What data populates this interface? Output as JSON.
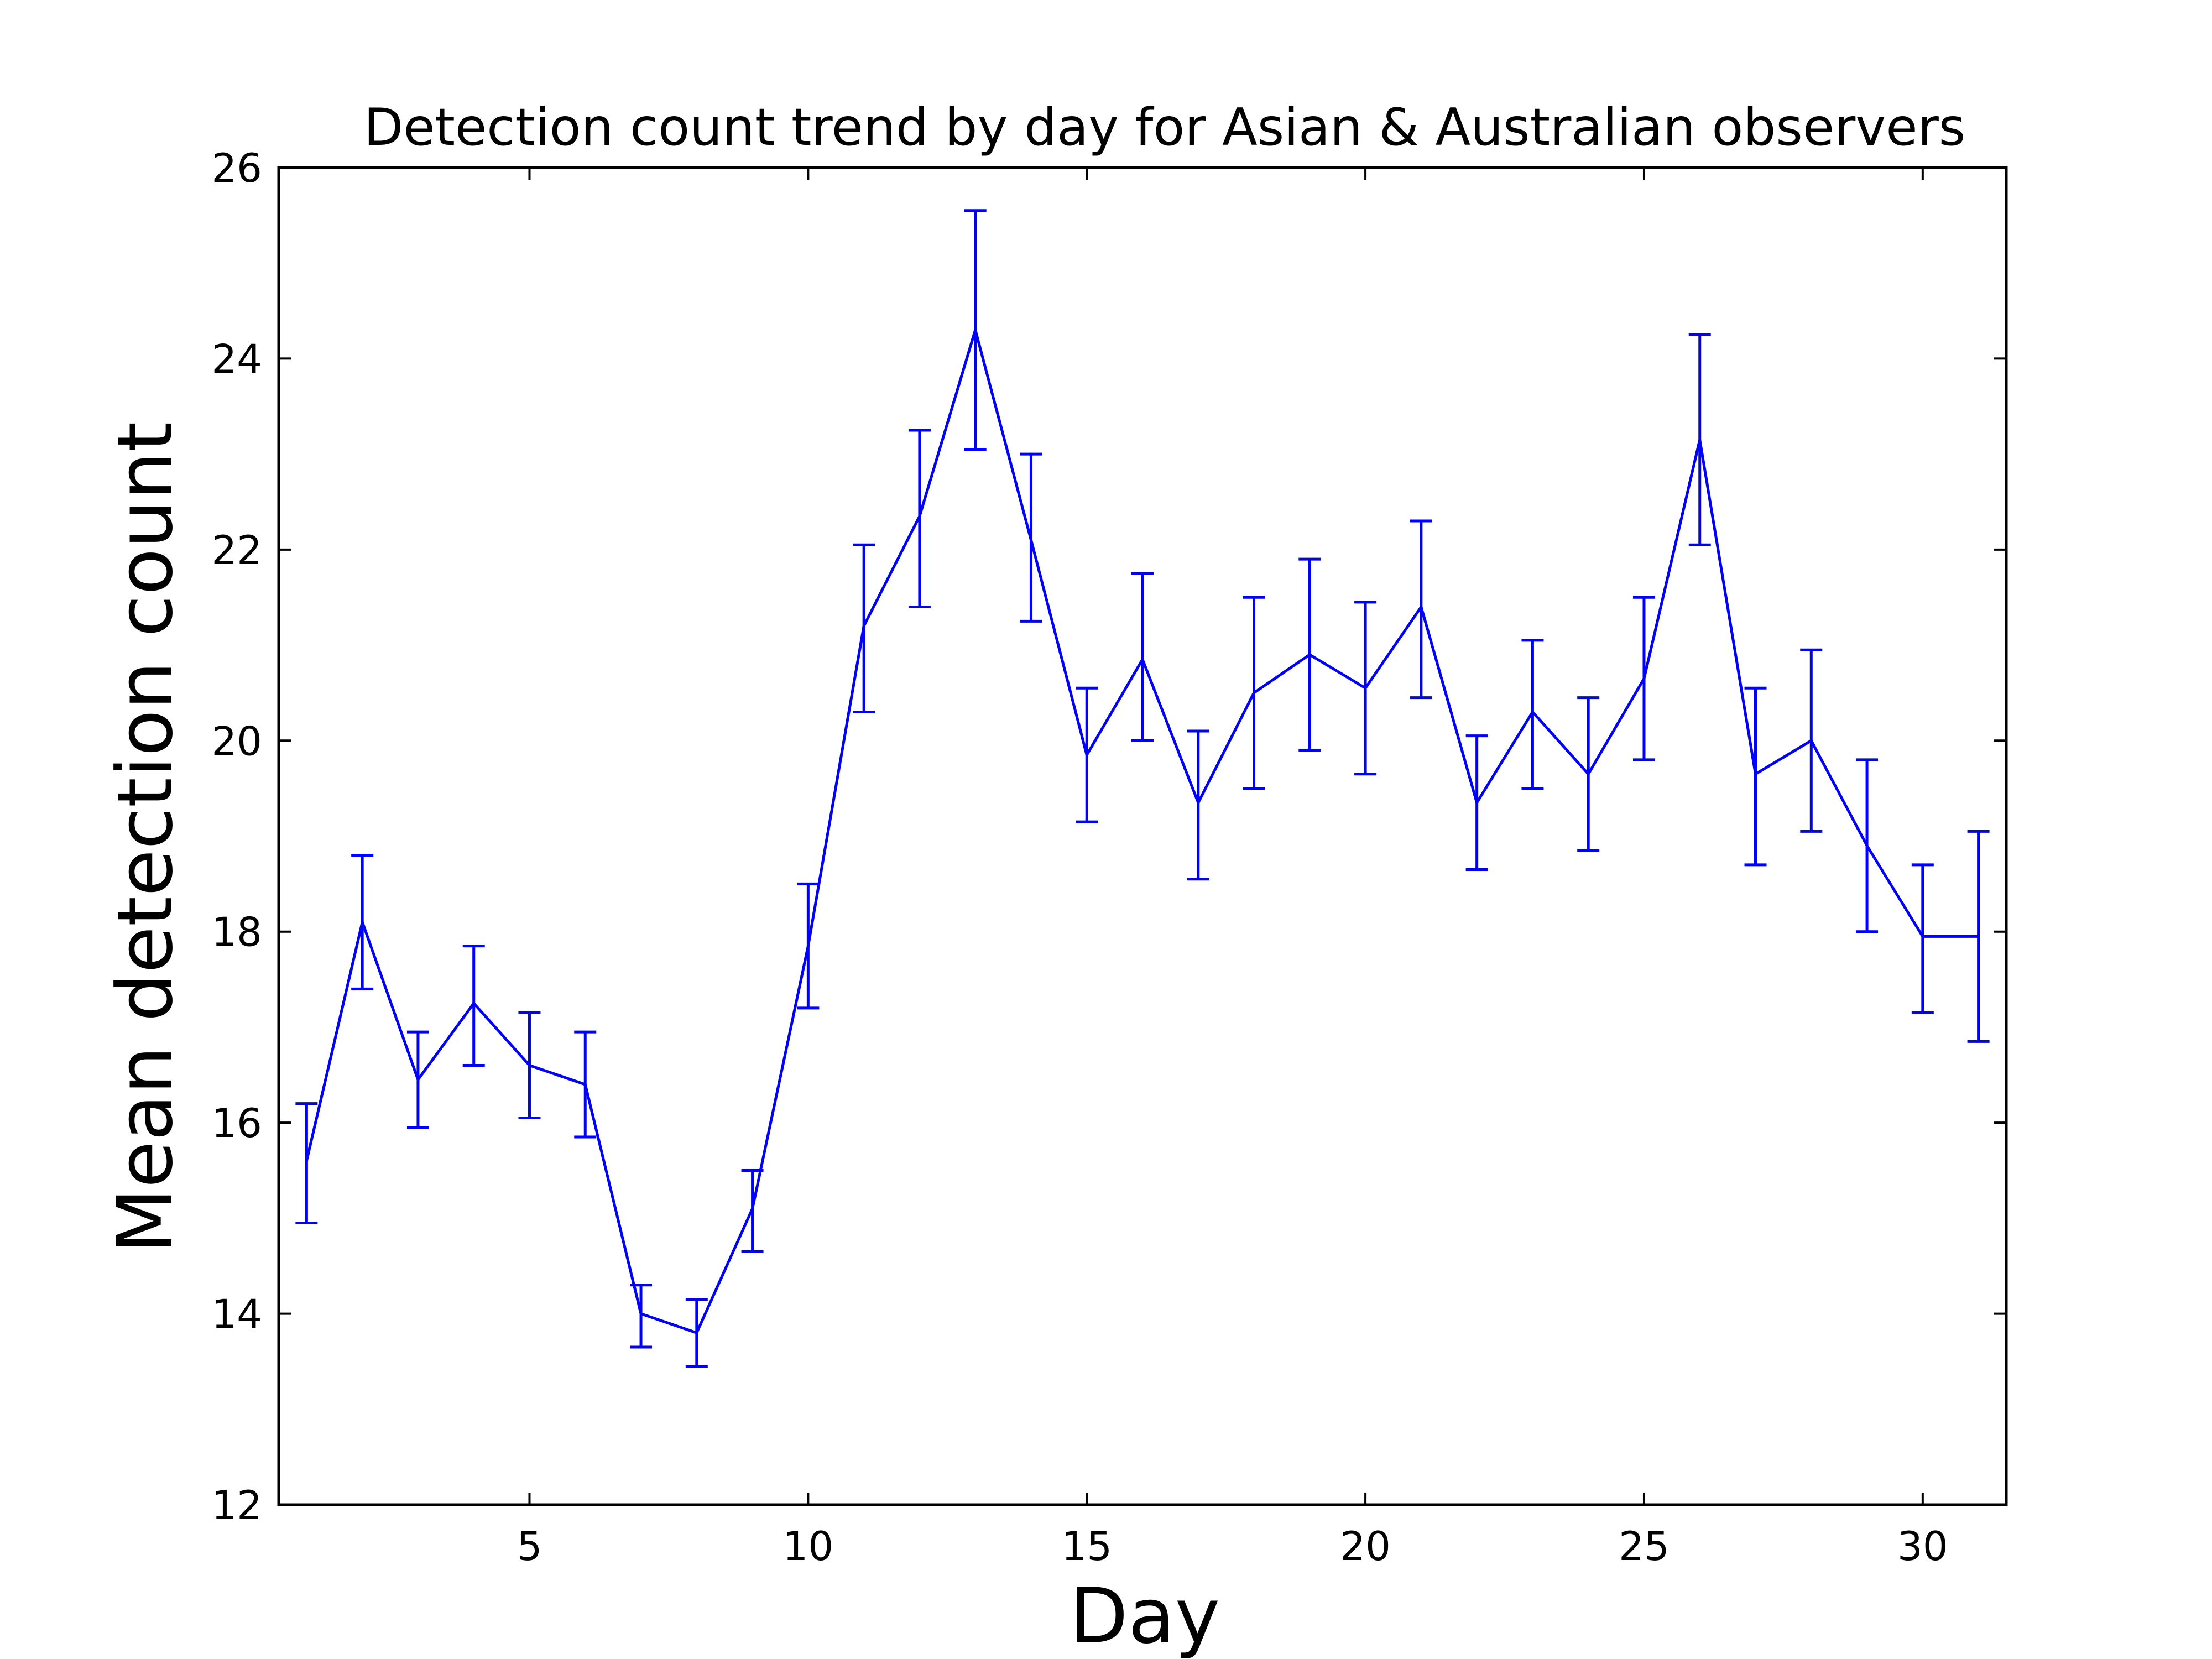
{
  "chart_data": {
    "type": "line",
    "title": "Detection count trend by day for Asian & Australian observers",
    "xlabel": "Day",
    "ylabel": "Mean detection count",
    "xlim": [
      0.5,
      31.5
    ],
    "ylim": [
      12,
      26
    ],
    "xticks": [
      5,
      10,
      15,
      20,
      25,
      30
    ],
    "yticks": [
      12,
      14,
      16,
      18,
      20,
      22,
      24,
      26
    ],
    "grid": false,
    "legend": "none",
    "series": [
      {
        "color": "#0000ff",
        "error_bars": true,
        "x": [
          1,
          2,
          3,
          4,
          5,
          6,
          7,
          8,
          9,
          10,
          11,
          12,
          13,
          14,
          15,
          16,
          17,
          18,
          19,
          20,
          21,
          22,
          23,
          24,
          25,
          26,
          27,
          28,
          29,
          30,
          31
        ],
        "y": [
          15.6,
          18.1,
          16.45,
          17.25,
          16.6,
          16.4,
          14.0,
          13.8,
          15.1,
          17.85,
          21.2,
          22.35,
          24.3,
          22.1,
          19.85,
          20.85,
          19.35,
          20.5,
          20.9,
          20.55,
          21.4,
          19.35,
          20.3,
          19.65,
          20.65,
          23.15,
          19.65,
          20.0,
          18.9,
          17.95,
          17.95
        ],
        "y_err_low": [
          14.95,
          17.4,
          15.95,
          16.6,
          16.05,
          15.85,
          13.65,
          13.45,
          14.65,
          17.2,
          20.3,
          21.4,
          23.05,
          21.25,
          19.15,
          20.0,
          18.55,
          19.5,
          19.9,
          19.65,
          20.45,
          18.65,
          19.5,
          18.85,
          19.8,
          22.05,
          18.7,
          19.05,
          18.0,
          17.15,
          16.85
        ],
        "y_err_high": [
          16.2,
          18.8,
          16.95,
          17.85,
          17.15,
          16.95,
          14.3,
          14.15,
          15.5,
          18.5,
          22.05,
          23.25,
          25.55,
          23.0,
          20.55,
          21.75,
          20.1,
          21.5,
          21.9,
          21.45,
          22.3,
          20.05,
          21.05,
          20.45,
          21.5,
          24.25,
          20.55,
          20.95,
          19.8,
          18.7,
          19.05
        ]
      }
    ]
  },
  "ticks": {
    "x_labels": [
      "5",
      "10",
      "15",
      "20",
      "25",
      "30"
    ],
    "y_labels": [
      "12",
      "14",
      "16",
      "18",
      "20",
      "22",
      "24",
      "26"
    ]
  }
}
